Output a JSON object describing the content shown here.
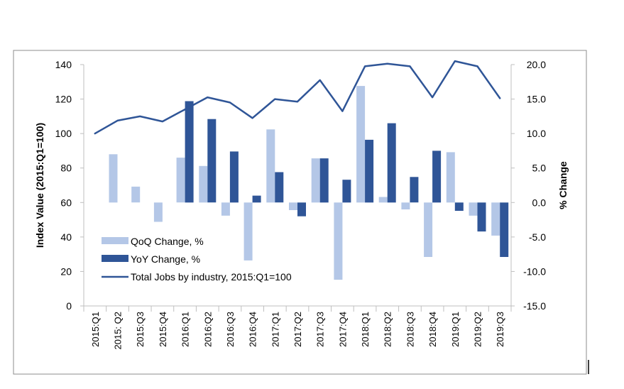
{
  "chart_data": {
    "type": "bar",
    "title": "",
    "categories": [
      "2015:Q1",
      "2015: Q2",
      "2015:Q3",
      "2015:Q4",
      "2016:Q1",
      "2016:Q2",
      "2016:Q3",
      "2016:Q4",
      "2017:Q1",
      "2017:Q2",
      "2017:Q3",
      "2017:Q4",
      "2018:Q1",
      "2018:Q2",
      "2018:Q3",
      "2018:Q4",
      "2019:Q1",
      "2019:Q2",
      "2019:Q3"
    ],
    "ylabel": "Index  Value  (2015:Q1=100)",
    "y2label": "% Change",
    "ylim": [
      0,
      140
    ],
    "y2lim": [
      -15,
      20
    ],
    "yticks": [
      "0",
      "20",
      "40",
      "60",
      "80",
      "100",
      "120",
      "140"
    ],
    "y2ticks": [
      "-15.0",
      "-10.0",
      "-5.0",
      "0.0",
      "5.0",
      "10.0",
      "15.0",
      "20.0"
    ],
    "legend_position": "bottom-left",
    "grid": false,
    "series": [
      {
        "name": "QoQ Change, %",
        "kind": "bar",
        "axis": "right",
        "color": "#b4c7e7",
        "values": [
          null,
          7.0,
          2.3,
          -2.8,
          6.5,
          5.3,
          -1.9,
          -8.4,
          10.6,
          -1.1,
          6.4,
          -11.2,
          16.9,
          0.8,
          -1.0,
          -7.9,
          7.3,
          -1.9,
          -4.8
        ]
      },
      {
        "name": "YoY Change, %",
        "kind": "bar",
        "axis": "right",
        "color": "#2f5597",
        "values": [
          null,
          null,
          null,
          null,
          14.7,
          12.1,
          7.4,
          1.0,
          4.4,
          -2.0,
          6.4,
          3.3,
          9.1,
          11.5,
          3.7,
          7.5,
          -1.2,
          -4.2,
          -7.9
        ]
      },
      {
        "name": "Total Jobs by industry, 2015:Q1=100",
        "kind": "line",
        "axis": "left",
        "color": "#2f5597",
        "values": [
          100,
          107.5,
          110,
          107,
          114,
          121,
          118,
          109,
          120,
          118.5,
          131,
          113,
          139,
          140.5,
          139,
          121,
          142,
          139,
          120.5
        ]
      }
    ]
  }
}
